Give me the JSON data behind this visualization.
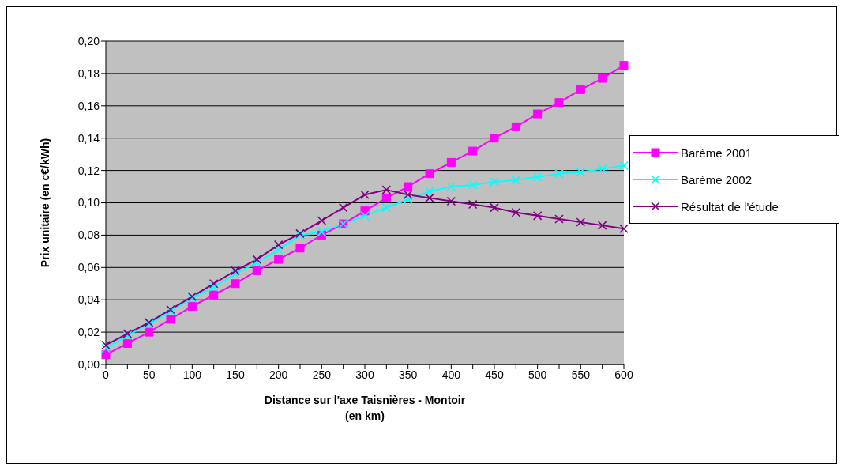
{
  "chart_data": {
    "type": "line",
    "xlabel": "Distance sur l'axe Taisnières - Montoir\n(en km)",
    "ylabel": "Prix unitaire (en c€/kWh)",
    "categories": [
      "0",
      null,
      "50",
      null,
      "100",
      null,
      "150",
      null,
      "200",
      null,
      "250",
      null,
      "300",
      null,
      "350",
      null,
      "400",
      null,
      "450",
      null,
      "500",
      null,
      "550",
      null,
      "600"
    ],
    "series": [
      {
        "name": "Barème 2001",
        "color": "#ff00ff",
        "marker": "square",
        "values": [
          0.006,
          0.013,
          0.02,
          0.028,
          0.036,
          0.043,
          0.05,
          0.058,
          0.065,
          0.072,
          0.08,
          0.087,
          0.095,
          0.103,
          0.11,
          0.118,
          0.125,
          0.132,
          0.14,
          0.147,
          0.155,
          0.162,
          0.17,
          0.177,
          0.185
        ]
      },
      {
        "name": "Barème 2002",
        "color": "#00ffff",
        "marker": "cross",
        "values": [
          0.01,
          0.018,
          0.025,
          0.033,
          0.041,
          0.048,
          0.056,
          0.063,
          0.071,
          0.08,
          0.082,
          0.087,
          0.092,
          0.097,
          0.102,
          0.107,
          0.11,
          0.111,
          0.113,
          0.114,
          0.116,
          0.118,
          0.119,
          0.121,
          0.123
        ]
      },
      {
        "name": "Résultat de l'étude",
        "color": "#800080",
        "marker": "cross",
        "values": [
          0.012,
          0.019,
          0.026,
          0.034,
          0.042,
          0.05,
          0.058,
          0.065,
          0.074,
          0.081,
          0.089,
          0.097,
          0.105,
          0.108,
          0.105,
          0.103,
          0.101,
          0.099,
          0.097,
          0.094,
          0.092,
          0.09,
          0.088,
          0.086,
          0.084
        ]
      }
    ],
    "ylim": [
      0,
      0.2
    ],
    "yticks": [
      {
        "value": 0,
        "label": "0,00"
      },
      {
        "value": 0.02,
        "label": "0,02"
      },
      {
        "value": 0.04,
        "label": "0,04"
      },
      {
        "value": 0.06,
        "label": "0,06"
      },
      {
        "value": 0.08,
        "label": "0,08"
      },
      {
        "value": 0.1,
        "label": "0,10"
      },
      {
        "value": 0.12,
        "label": "0,12"
      },
      {
        "value": 0.14,
        "label": "0,14"
      },
      {
        "value": 0.16,
        "label": "0,16"
      },
      {
        "value": 0.18,
        "label": "0,18"
      },
      {
        "value": 0.2,
        "label": "0,20"
      }
    ],
    "grid": "y",
    "legend": "right",
    "line_style": "solid"
  }
}
